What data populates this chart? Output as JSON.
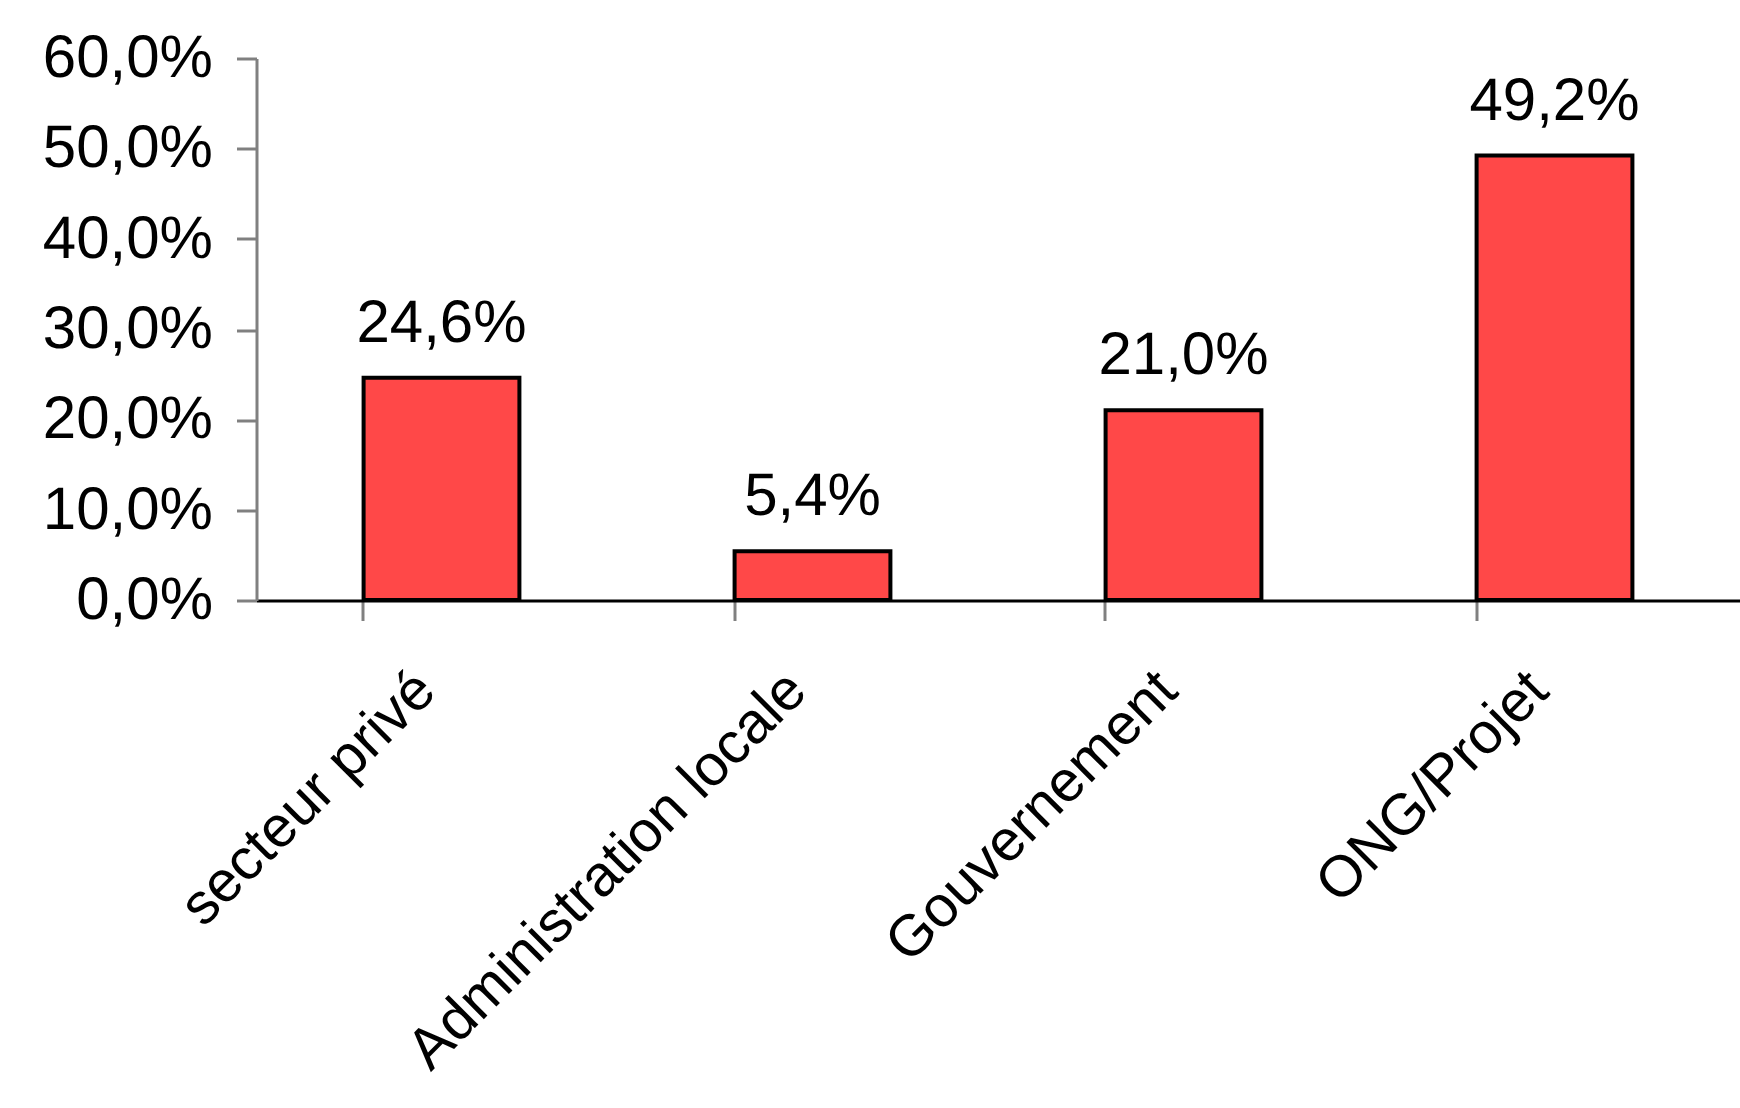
{
  "chart_data": {
    "type": "bar",
    "categories": [
      "secteur privé",
      "Administration locale",
      "Gouvernement",
      "ONG/Projet"
    ],
    "values": [
      24.6,
      5.4,
      21.0,
      49.2
    ],
    "value_labels": [
      "24,6%",
      "5,4%",
      "21,0%",
      "49,2%"
    ],
    "color": "#ff4848",
    "ylim": [
      0,
      60
    ],
    "yticks": [
      {
        "value": 0,
        "label": "0,0%"
      },
      {
        "value": 10,
        "label": "10,0%"
      },
      {
        "value": 20,
        "label": "20,0%"
      },
      {
        "value": 30,
        "label": "30,0%"
      },
      {
        "value": 40,
        "label": "40,0%"
      },
      {
        "value": 50,
        "label": "50,0%"
      },
      {
        "value": 60,
        "label": "60,0%"
      }
    ]
  }
}
